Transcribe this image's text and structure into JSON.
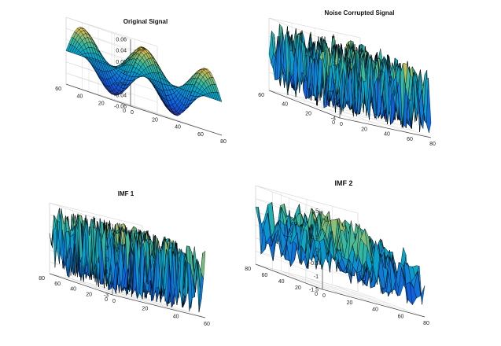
{
  "figure": {
    "background": "#ffffff"
  },
  "chart_data": [
    {
      "type": "surface",
      "title": "Original Signal",
      "kind": "smooth",
      "xlim": [
        0,
        80
      ],
      "ylim": [
        0,
        80
      ],
      "zlim": [
        -0.06,
        0.06
      ],
      "x_ticks": [
        "0",
        "20",
        "40",
        "60",
        "80"
      ],
      "y_ticks": [
        "0",
        "20",
        "40",
        "60"
      ],
      "z_ticks": [
        "0.06",
        "0.04",
        "0.02",
        "0",
        "-0.02",
        "-0.04",
        "-0.06"
      ],
      "colormap": "parula"
    },
    {
      "type": "surface",
      "title": "Noise Corrupted Signal",
      "kind": "noise",
      "xlim": [
        0,
        80
      ],
      "ylim": [
        0,
        80
      ],
      "zlim": [
        -4,
        4
      ],
      "x_ticks": [
        "0",
        "20",
        "40",
        "60",
        "80"
      ],
      "y_ticks": [
        "0",
        "20",
        "40",
        "60"
      ],
      "z_ticks": [
        "4",
        "2",
        "0",
        "-2",
        "-4"
      ],
      "colormap": "parula"
    },
    {
      "type": "surface",
      "title": "IMF 1",
      "kind": "noise",
      "xlim": [
        0,
        80
      ],
      "ylim": [
        0,
        80
      ],
      "zlim": [
        -3,
        3
      ],
      "x_ticks": [
        "0",
        "20",
        "40",
        "60"
      ],
      "y_ticks": [
        "0",
        "20",
        "40",
        "60",
        "80"
      ],
      "z_ticks": [
        "3",
        "2",
        "1",
        "0",
        "-1",
        "-2",
        "-3"
      ],
      "colormap": "parula"
    },
    {
      "type": "surface",
      "title": "IMF 2",
      "kind": "rough",
      "xlim": [
        0,
        80
      ],
      "ylim": [
        0,
        80
      ],
      "zlim": [
        -1.5,
        1.5
      ],
      "x_ticks": [
        "0",
        "20",
        "40",
        "60",
        "80"
      ],
      "y_ticks": [
        "0",
        "20",
        "40",
        "60",
        "80"
      ],
      "z_ticks": [
        "1.5",
        "1",
        "0.5",
        "0",
        "-0.5",
        "-1",
        "-1.5"
      ],
      "colormap": "parula"
    }
  ]
}
